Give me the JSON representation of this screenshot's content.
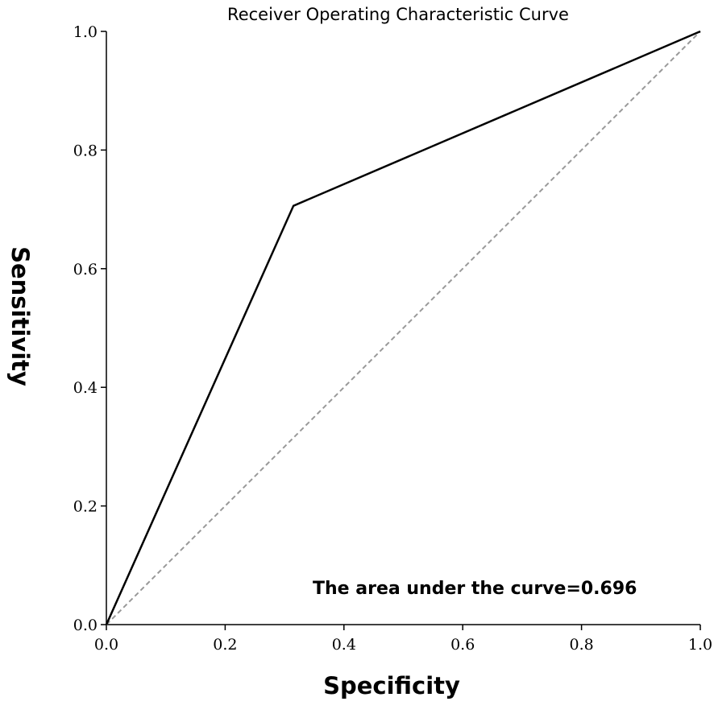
{
  "chart_data": {
    "type": "line",
    "title": "Receiver Operating Characteristic Curve",
    "xlabel": "Specificity",
    "ylabel": "Sensitivity",
    "xlim": [
      0.0,
      1.0
    ],
    "ylim": [
      0.0,
      1.0
    ],
    "x_ticks": [
      "0.0",
      "0.2",
      "0.4",
      "0.6",
      "0.8",
      "1.0"
    ],
    "y_ticks": [
      "0.0",
      "0.2",
      "0.4",
      "0.6",
      "0.8",
      "1.0"
    ],
    "grid": false,
    "legend": "none",
    "series": [
      {
        "x": [
          0.0,
          0.315,
          1.0
        ],
        "y": [
          0.0,
          0.706,
          1.0
        ],
        "color": "#000000",
        "style": "solid"
      },
      {
        "x": [
          0.0,
          1.0
        ],
        "y": [
          0.0,
          1.0
        ],
        "color": "#999999",
        "style": "dashed"
      }
    ],
    "annotation": "The area under the curve=0.696"
  }
}
